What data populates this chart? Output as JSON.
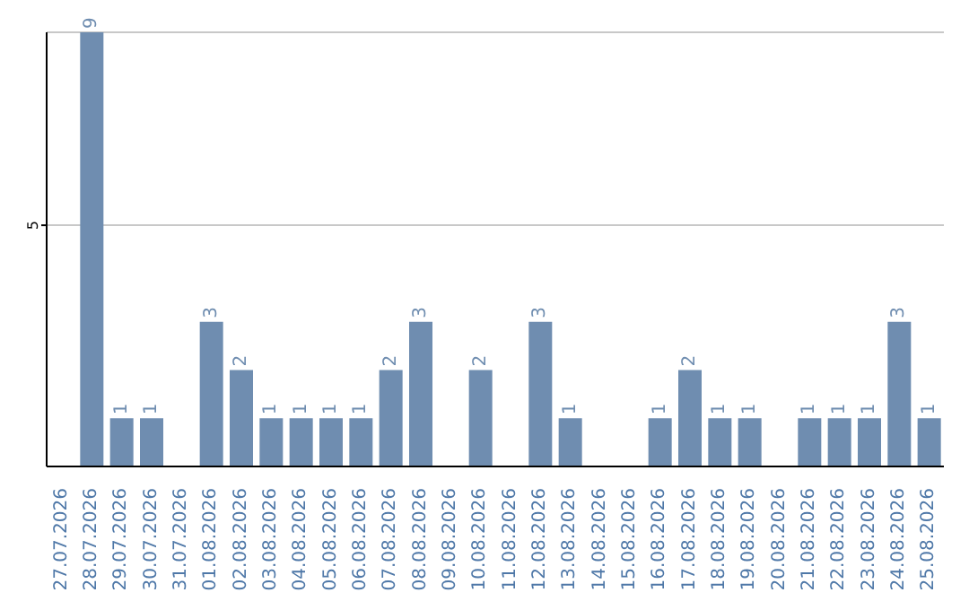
{
  "chart_data": {
    "type": "bar",
    "categories": [
      "27.07.2026",
      "28.07.2026",
      "29.07.2026",
      "30.07.2026",
      "31.07.2026",
      "01.08.2026",
      "02.08.2026",
      "03.08.2026",
      "04.08.2026",
      "05.08.2026",
      "06.08.2026",
      "07.08.2026",
      "08.08.2026",
      "09.08.2026",
      "10.08.2026",
      "11.08.2026",
      "12.08.2026",
      "13.08.2026",
      "14.08.2026",
      "15.08.2026",
      "16.08.2026",
      "17.08.2026",
      "18.08.2026",
      "19.08.2026",
      "20.08.2026",
      "21.08.2026",
      "22.08.2026",
      "23.08.2026",
      "24.08.2026",
      "25.08.2026"
    ],
    "values": [
      0,
      9,
      1,
      1,
      0,
      3,
      2,
      1,
      1,
      1,
      1,
      2,
      3,
      0,
      2,
      0,
      3,
      1,
      0,
      0,
      1,
      2,
      1,
      1,
      0,
      1,
      1,
      1,
      3,
      1
    ],
    "value_labels": [
      null,
      "9",
      "1",
      "1",
      null,
      "3",
      "2",
      "1",
      "1",
      "1",
      "1",
      "2",
      "3",
      null,
      "2",
      null,
      "3",
      "1",
      null,
      null,
      "1",
      "2",
      "1",
      "1",
      null,
      "1",
      "1",
      "1",
      "3",
      "1"
    ],
    "color": "#6f8db0",
    "ylim": [
      0,
      9
    ],
    "yticks": [
      5
    ],
    "grid": "y"
  }
}
